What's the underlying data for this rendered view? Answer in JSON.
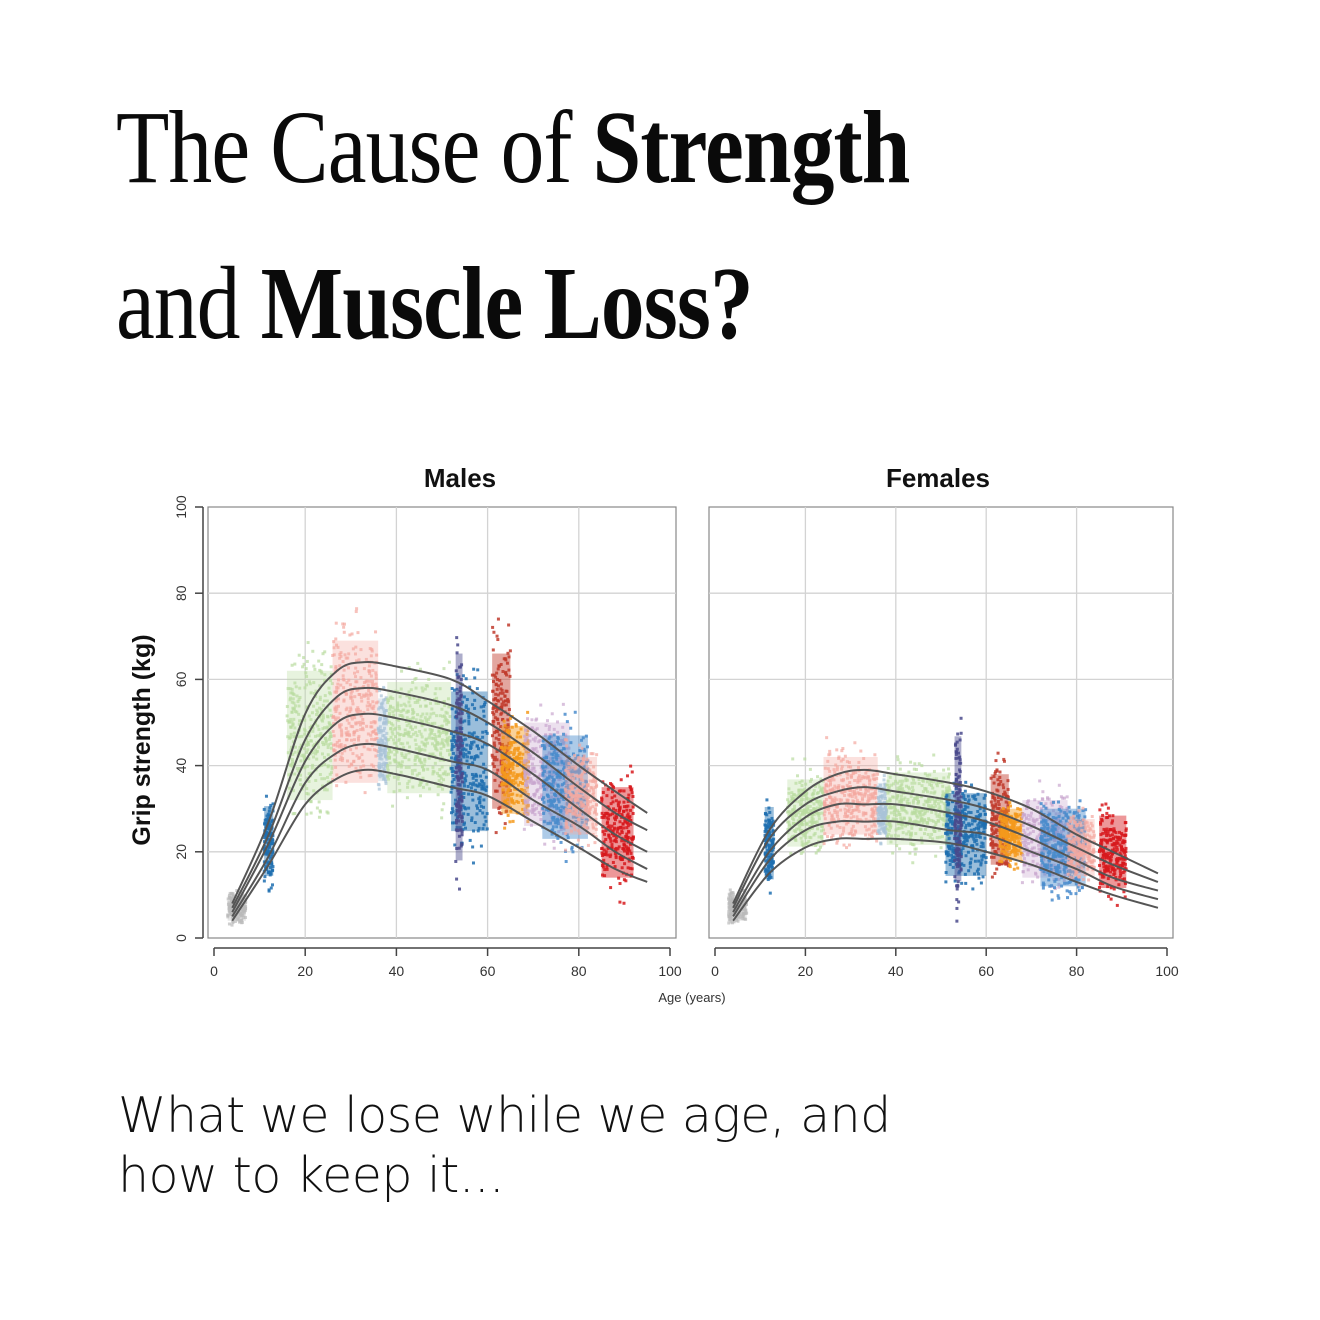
{
  "page": {
    "title": {
      "line1_regular": "The Cause of ",
      "line1_bold": "Strength",
      "line2_regular": "and ",
      "line2_bold": "Muscle Loss?"
    },
    "subtitle": {
      "line1": "What we lose while we age, and",
      "line2": "how to keep it..."
    }
  },
  "colors": {
    "text": "#0a0a0a",
    "curve": "#555555",
    "grid": "#d3d3d3",
    "axis": "#444444",
    "cohort_blue": "#1f6fb0",
    "cohort_light_blue": "#7fb3e0",
    "cohort_green": "#b9dca0",
    "cohort_pink": "#f3a8a0",
    "cohort_orange": "#f59a1c",
    "cohort_lavender": "#c9a7cf",
    "cohort_red": "#d7191c",
    "cohort_purple": "#4a4a8c"
  },
  "chart_data": [
    {
      "type": "scatter",
      "title": "Males",
      "xlabel": "Age (years)",
      "ylabel": "Grip strength (kg)",
      "xlim": [
        0,
        100
      ],
      "ylim": [
        0,
        100
      ],
      "xticks": [
        0,
        20,
        40,
        60,
        80,
        100
      ],
      "yticks": [
        0,
        20,
        40,
        60,
        80,
        100
      ],
      "grid": true,
      "legend": "none",
      "centile_curves": {
        "x": [
          4,
          12,
          20,
          27,
          33,
          40,
          52,
          60,
          70,
          80,
          88,
          95
        ],
        "series": [
          {
            "name": "centile-top",
            "values": [
              8,
              27,
              52,
              62,
              64,
              63,
              60,
              55,
              48,
              40,
              34,
              29
            ]
          },
          {
            "name": "centile-2",
            "values": [
              7,
              24,
              46,
              56,
              58,
              57,
              54,
              50,
              43,
              35,
              29,
              25
            ]
          },
          {
            "name": "centile-median",
            "values": [
              6,
              22,
              41,
              50,
              52,
              51,
              48,
              45,
              38,
              30,
              24,
              20
            ]
          },
          {
            "name": "centile-4",
            "values": [
              5,
              19,
              36,
              43,
              45,
              44,
              41,
              39,
              32,
              26,
              20,
              16
            ]
          },
          {
            "name": "centile-bottom",
            "values": [
              4,
              17,
              31,
              37,
              39,
              38,
              35,
              33,
              27,
              21,
              16,
              13
            ]
          }
        ]
      },
      "cohorts": [
        {
          "age_range": [
            3,
            7
          ],
          "y_range": [
            2,
            12
          ],
          "color": "#bbbbbb"
        },
        {
          "age_range": [
            11,
            13
          ],
          "y_range": [
            9,
            36
          ],
          "color": "#1f6fb0"
        },
        {
          "age_range": [
            16,
            26
          ],
          "y_range": [
            22,
            72
          ],
          "color": "#b9dca0"
        },
        {
          "age_range": [
            26,
            36
          ],
          "y_range": [
            25,
            80
          ],
          "color": "#f3a8a0"
        },
        {
          "age_range": [
            36,
            38
          ],
          "y_range": [
            30,
            62
          ],
          "color": "#aac3d8"
        },
        {
          "age_range": [
            38,
            52
          ],
          "y_range": [
            25,
            68
          ],
          "color": "#b9dca0"
        },
        {
          "age_range": [
            52,
            60
          ],
          "y_range": [
            14,
            68
          ],
          "color": "#1f6fb0"
        },
        {
          "age_range": [
            53,
            54.5
          ],
          "y_range": [
            2,
            82
          ],
          "color": "#4a4a8c"
        },
        {
          "age_range": [
            61,
            65
          ],
          "y_range": [
            18,
            78
          ],
          "color": "#c0392b"
        },
        {
          "age_range": [
            63,
            69
          ],
          "y_range": [
            22,
            56
          ],
          "color": "#f59a1c"
        },
        {
          "age_range": [
            68,
            78
          ],
          "y_range": [
            18,
            58
          ],
          "color": "#c9a7cf"
        },
        {
          "age_range": [
            72,
            82
          ],
          "y_range": [
            15,
            55
          ],
          "color": "#4a8ccc"
        },
        {
          "age_range": [
            77,
            84
          ],
          "y_range": [
            18,
            48
          ],
          "color": "#f3a8a0"
        },
        {
          "age_range": [
            85,
            92
          ],
          "y_range": [
            7,
            42
          ],
          "color": "#d7191c"
        }
      ]
    },
    {
      "type": "scatter",
      "title": "Females",
      "xlabel": "Age (years)",
      "ylabel": "Grip strength (kg)",
      "xlim": [
        0,
        100
      ],
      "ylim": [
        0,
        100
      ],
      "xticks": [
        0,
        20,
        40,
        60,
        80,
        100
      ],
      "yticks": [
        0,
        20,
        40,
        60,
        80,
        100
      ],
      "grid": true,
      "legend": "none",
      "centile_curves": {
        "x": [
          4,
          12,
          20,
          27,
          33,
          40,
          52,
          60,
          70,
          80,
          88,
          98
        ],
        "series": [
          {
            "name": "centile-top",
            "values": [
              8,
              25,
              34,
              38,
              39,
              38,
              36,
              34,
              30,
              24,
              20,
              15
            ]
          },
          {
            "name": "centile-2",
            "values": [
              7,
              23,
              31,
              34,
              35,
              34,
              32,
              30,
              26,
              21,
              17,
              13
            ]
          },
          {
            "name": "centile-median",
            "values": [
              6,
              20,
              28,
              31,
              31,
              31,
              29,
              27,
              23,
              18,
              14,
              11
            ]
          },
          {
            "name": "centile-4",
            "values": [
              5,
              18,
              25,
              27,
              27,
              27,
              25,
              24,
              20,
              16,
              12,
              9
            ]
          },
          {
            "name": "centile-bottom",
            "values": [
              4,
              15,
              21,
              23,
              23,
              23,
              22,
              20,
              17,
              13,
              10,
              7
            ]
          }
        ]
      },
      "cohorts": [
        {
          "age_range": [
            3,
            7
          ],
          "y_range": [
            2,
            12
          ],
          "color": "#bbbbbb"
        },
        {
          "age_range": [
            11,
            13
          ],
          "y_range": [
            8,
            36
          ],
          "color": "#1f6fb0"
        },
        {
          "age_range": [
            16,
            24
          ],
          "y_range": [
            16,
            42
          ],
          "color": "#b9dca0"
        },
        {
          "age_range": [
            24,
            36
          ],
          "y_range": [
            18,
            48
          ],
          "color": "#f3a8a0"
        },
        {
          "age_range": [
            36,
            38
          ],
          "y_range": [
            20,
            40
          ],
          "color": "#aac3d8"
        },
        {
          "age_range": [
            38,
            52
          ],
          "y_range": [
            16,
            44
          ],
          "color": "#b9dca0"
        },
        {
          "age_range": [
            51,
            60
          ],
          "y_range": [
            8,
            40
          ],
          "color": "#1f6fb0"
        },
        {
          "age_range": [
            53,
            54.5
          ],
          "y_range": [
            2,
            58
          ],
          "color": "#4a4a8c"
        },
        {
          "age_range": [
            61,
            65
          ],
          "y_range": [
            10,
            45
          ],
          "color": "#c0392b"
        },
        {
          "age_range": [
            63,
            68
          ],
          "y_range": [
            14,
            34
          ],
          "color": "#f59a1c"
        },
        {
          "age_range": [
            68,
            78
          ],
          "y_range": [
            8,
            38
          ],
          "color": "#c9a7cf"
        },
        {
          "age_range": [
            72,
            82
          ],
          "y_range": [
            6,
            36
          ],
          "color": "#4a8ccc"
        },
        {
          "age_range": [
            78,
            84
          ],
          "y_range": [
            10,
            32
          ],
          "color": "#f3a8a0"
        },
        {
          "age_range": [
            85,
            91
          ],
          "y_range": [
            6,
            34
          ],
          "color": "#d7191c"
        }
      ]
    }
  ],
  "labels": {
    "males_title": "Males",
    "females_title": "Females",
    "y_axis": "Grip strength (kg)",
    "x_axis": "Age (years)",
    "ticks": [
      "0",
      "20",
      "40",
      "60",
      "80",
      "100"
    ]
  }
}
